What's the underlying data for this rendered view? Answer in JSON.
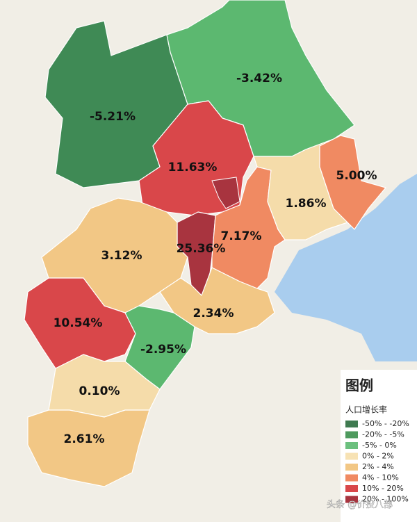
{
  "map": {
    "regions": [
      {
        "label": "-5.21%",
        "color": "#3f8a55"
      },
      {
        "label": "-3.42%",
        "color": "#5cb870"
      },
      {
        "label": "11.63%",
        "color": "#d9474a"
      },
      {
        "label": "25.36%",
        "color": "#a8343f"
      },
      {
        "label": "7.17%",
        "color": "#f08a62"
      },
      {
        "label": "1.86%",
        "color": "#f5dcaa"
      },
      {
        "label": "5.00%",
        "color": "#f08a62"
      },
      {
        "label": "3.12%",
        "color": "#f2c785"
      },
      {
        "label": "2.34%",
        "color": "#f2c785"
      },
      {
        "label": "10.54%",
        "color": "#d9474a"
      },
      {
        "label": "-2.95%",
        "color": "#5cb870"
      },
      {
        "label": "0.10%",
        "color": "#f5dcaa"
      },
      {
        "label": "2.61%",
        "color": "#f2c785"
      }
    ],
    "legend": {
      "title": "图例",
      "subtitle": "人口增长率",
      "items": [
        {
          "label": "-50% - -20%",
          "color": "#3f7a50"
        },
        {
          "label": "-20% - -5%",
          "color": "#4e9a5e"
        },
        {
          "label": "-5% - 0%",
          "color": "#6cc07e"
        },
        {
          "label": "0% - 2%",
          "color": "#f7e2b4"
        },
        {
          "label": "2% - 4%",
          "color": "#f2c785"
        },
        {
          "label": "4% - 10%",
          "color": "#f08a62"
        },
        {
          "label": "10% - 20%",
          "color": "#d9474a"
        },
        {
          "label": "20% - 100%",
          "color": "#a8343f"
        }
      ]
    },
    "watermark": "头条 @价投八部"
  }
}
